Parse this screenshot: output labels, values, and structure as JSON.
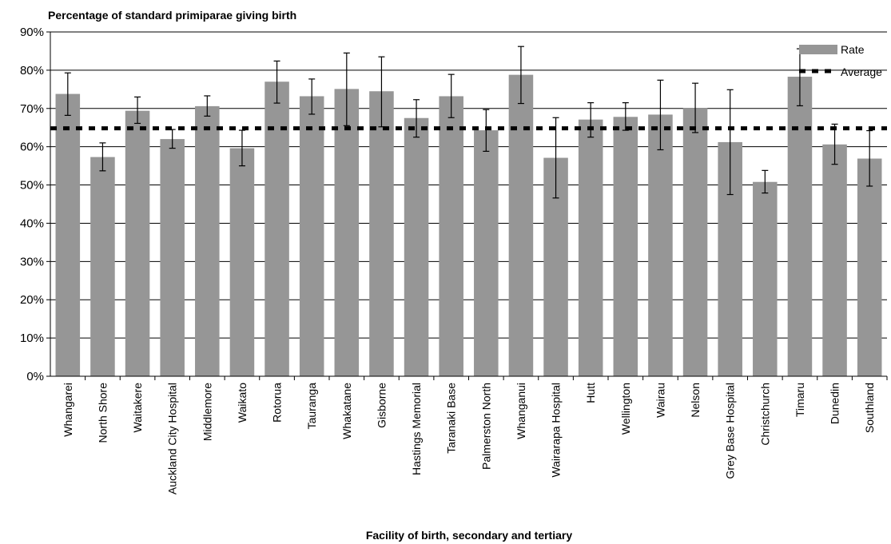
{
  "chart_data": {
    "type": "bar",
    "title": "Percentage of standard primiparae giving birth",
    "xlabel": "Facility of birth, secondary and tertiary",
    "ylabel": "",
    "ylim": [
      0,
      0.9
    ],
    "yticks": [
      0,
      0.1,
      0.2,
      0.3,
      0.4,
      0.5,
      0.6,
      0.7,
      0.8,
      0.9
    ],
    "ytick_labels": [
      "0%",
      "10%",
      "20%",
      "30%",
      "40%",
      "50%",
      "60%",
      "70%",
      "80%",
      "90%"
    ],
    "grid": true,
    "legend_position": "top-right",
    "categories": [
      "Whangarei",
      "North Shore",
      "Waitakere",
      "Auckland City Hospital",
      "Middlemore",
      "Waikato",
      "Rotorua",
      "Tauranga",
      "Whakatane",
      "Gisborne",
      "Hastings Memorial",
      "Taranaki Base",
      "Palmerston North",
      "Whanganui",
      "Wairarapa Hospital",
      "Hutt",
      "Wellington",
      "Wairau",
      "Nelson",
      "Grey Base Hospital",
      "Christchurch",
      "Timaru",
      "Dunedin",
      "Southland"
    ],
    "series": [
      {
        "name": "Rate",
        "color": "#969696",
        "values": [
          0.738,
          0.573,
          0.694,
          0.62,
          0.706,
          0.596,
          0.77,
          0.732,
          0.751,
          0.745,
          0.675,
          0.732,
          0.643,
          0.788,
          0.571,
          0.671,
          0.678,
          0.684,
          0.701,
          0.612,
          0.508,
          0.783,
          0.606,
          0.569
        ],
        "error_low": [
          0.682,
          0.537,
          0.661,
          0.596,
          0.68,
          0.55,
          0.714,
          0.685,
          0.655,
          0.652,
          0.625,
          0.676,
          0.588,
          0.713,
          0.466,
          0.625,
          0.643,
          0.592,
          0.637,
          0.475,
          0.479,
          0.707,
          0.554,
          0.497
        ],
        "error_high": [
          0.793,
          0.61,
          0.73,
          0.645,
          0.733,
          0.643,
          0.824,
          0.777,
          0.845,
          0.835,
          0.723,
          0.789,
          0.697,
          0.862,
          0.676,
          0.715,
          0.715,
          0.774,
          0.766,
          0.749,
          0.538,
          0.856,
          0.659,
          0.642
        ]
      },
      {
        "name": "Average",
        "type": "line",
        "style": "dotted",
        "color": "#000000",
        "value": 0.648
      }
    ]
  }
}
